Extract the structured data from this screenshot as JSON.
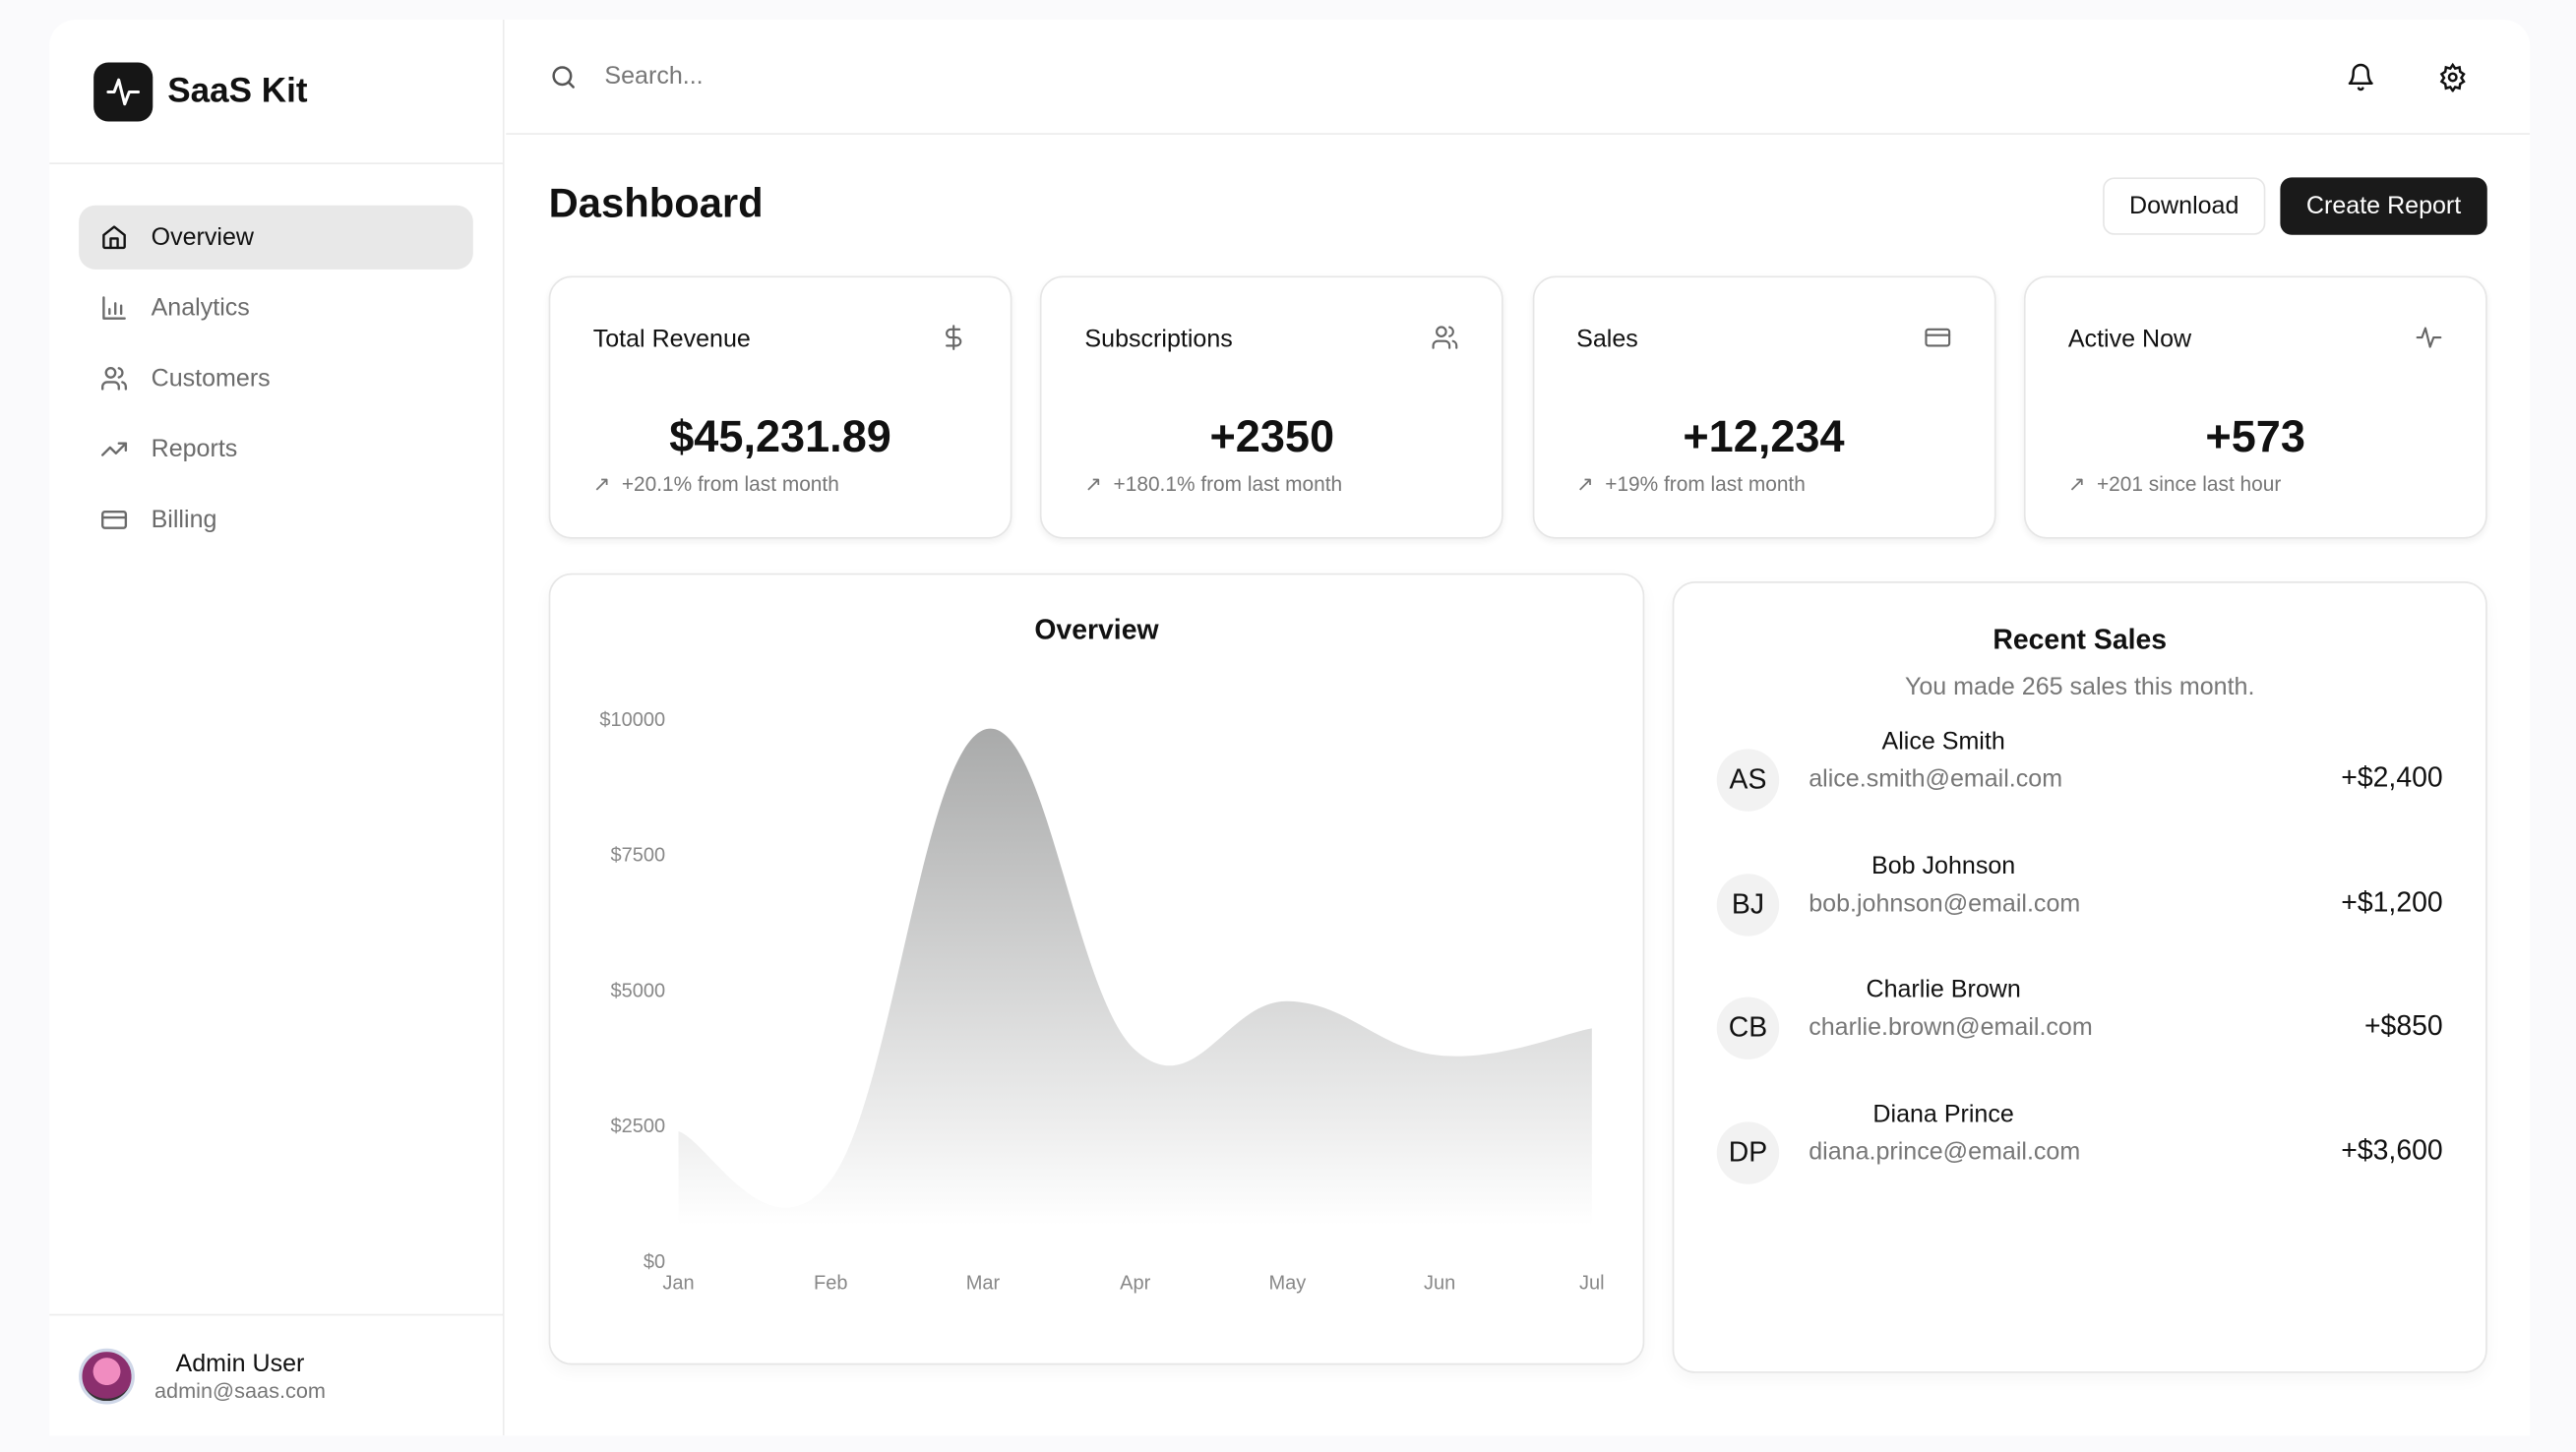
{
  "brand": {
    "name": "SaaS Kit",
    "logo_icon": "activity-icon"
  },
  "sidebar": {
    "items": [
      {
        "label": "Overview",
        "icon": "home-icon",
        "active": true
      },
      {
        "label": "Analytics",
        "icon": "bar-chart-icon",
        "active": false
      },
      {
        "label": "Customers",
        "icon": "users-icon",
        "active": false
      },
      {
        "label": "Reports",
        "icon": "trending-up-icon",
        "active": false
      },
      {
        "label": "Billing",
        "icon": "credit-card-icon",
        "active": false
      }
    ]
  },
  "user": {
    "name": "Admin User",
    "email": "admin@saas.com"
  },
  "search": {
    "placeholder": "Search..."
  },
  "header": {
    "title": "Dashboard",
    "download_label": "Download",
    "create_label": "Create Report"
  },
  "stats": [
    {
      "label": "Total Revenue",
      "icon": "dollar-icon",
      "value": "$45,231.89",
      "change": "+20.1% from last month"
    },
    {
      "label": "Subscriptions",
      "icon": "users-icon",
      "value": "+2350",
      "change": "+180.1% from last month"
    },
    {
      "label": "Sales",
      "icon": "credit-card-icon",
      "value": "+12,234",
      "change": "+19% from last month"
    },
    {
      "label": "Active Now",
      "icon": "activity-icon",
      "value": "+573",
      "change": "+201 since last hour"
    }
  ],
  "recent_sales": {
    "title": "Recent Sales",
    "subtitle": "You made 265 sales this month.",
    "items": [
      {
        "initials": "AS",
        "name": "Alice Smith",
        "email": "alice.smith@email.com",
        "amount": "+$2,400"
      },
      {
        "initials": "BJ",
        "name": "Bob Johnson",
        "email": "bob.johnson@email.com",
        "amount": "+$1,200"
      },
      {
        "initials": "CB",
        "name": "Charlie Brown",
        "email": "charlie.brown@email.com",
        "amount": "+$850"
      },
      {
        "initials": "DP",
        "name": "Diana Prince",
        "email": "diana.prince@email.com",
        "amount": "+$3,600"
      }
    ]
  },
  "chart_data": {
    "type": "area",
    "title": "Overview",
    "categories": [
      "Jan",
      "Feb",
      "Mar",
      "Apr",
      "May",
      "Jun",
      "Jul"
    ],
    "values": [
      2400,
      1500,
      9800,
      3900,
      4800,
      3800,
      4300
    ],
    "yticks": [
      "$0",
      "$2500",
      "$5000",
      "$7500",
      "$10000"
    ],
    "ytick_values": [
      0,
      2500,
      5000,
      7500,
      10000
    ],
    "ylim": [
      0,
      10000
    ],
    "grid": false,
    "fill_color": "#b0b0b0"
  }
}
